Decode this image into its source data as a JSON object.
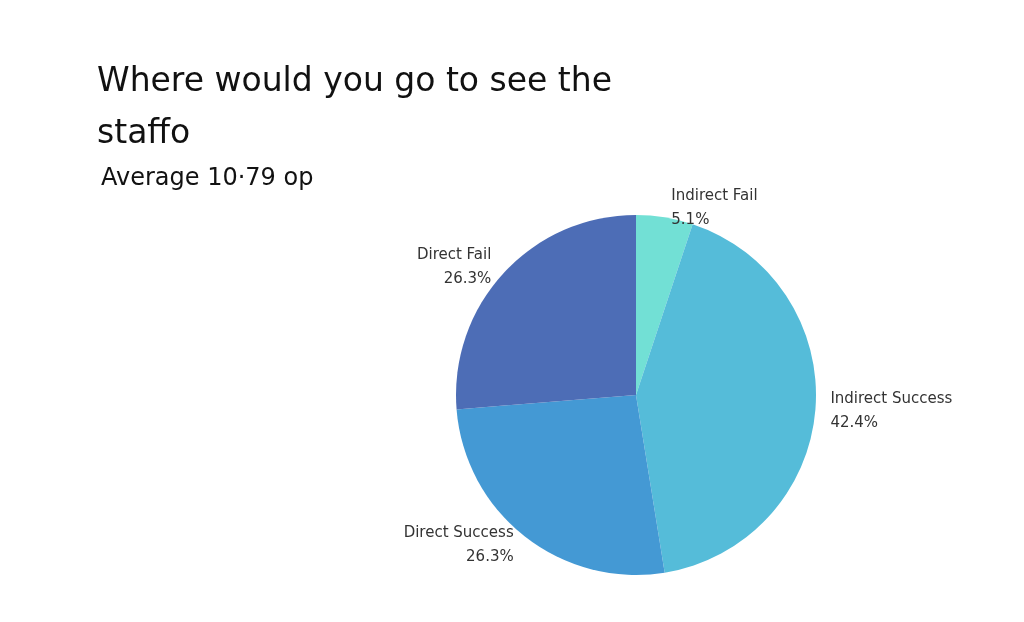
{
  "chart_data": {
    "type": "pie",
    "title": "Where would you go to see the staffo",
    "subtitle": "Average 10·79 op",
    "categories": [
      "Indirect Fail",
      "Indirect Success",
      "Direct Success",
      "Direct Fail"
    ],
    "values": [
      5.1,
      42.4,
      26.3,
      26.3
    ],
    "colors": [
      "#72e0d5",
      "#55bcd9",
      "#4499d4",
      "#4d6db6"
    ],
    "value_labels": [
      "5.1%",
      "42.4%",
      "26.3%",
      "26.3%"
    ],
    "legend": false
  }
}
